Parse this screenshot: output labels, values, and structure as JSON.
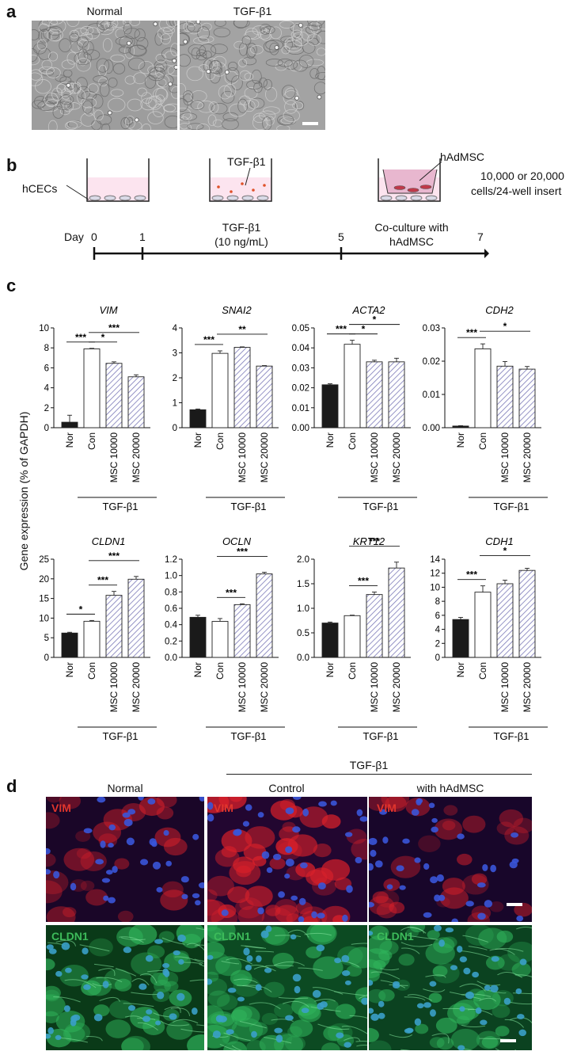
{
  "panel_a": {
    "label": "a",
    "captions": [
      "Normal",
      "TGF-β1"
    ]
  },
  "panel_b": {
    "label": "b",
    "hcecs": "hCECs",
    "tgf_top": "TGF-β1",
    "hadmsc_top": "hAdMSC",
    "cells_line1": "10,000 or 20,000",
    "cells_line2": "cells/24-well insert",
    "day_label": "Day",
    "ticks": [
      "0",
      "1",
      "5",
      "7"
    ],
    "tgf_phase_line1": "TGF-β1",
    "tgf_phase_line2": "(10 ng/mL)",
    "cocult_line1": "Co-culture with",
    "cocult_line2": "hAdMSC"
  },
  "panel_c": {
    "label": "c",
    "ylabel": "Gene expression (% of GAPDH)",
    "group_label": "TGF-β1"
  },
  "chart_data": [
    {
      "type": "bar",
      "title": "VIM",
      "categories": [
        "Nor",
        "Con",
        "MSC 10000",
        "MSC 20000"
      ],
      "values": [
        0.55,
        7.9,
        6.45,
        5.1
      ],
      "errors": [
        0.7,
        0.05,
        0.15,
        0.2
      ],
      "ylim": [
        0,
        10
      ],
      "yticks": [
        "0",
        "2",
        "4",
        "6",
        "8",
        "10"
      ],
      "sig": [
        {
          "from": 1,
          "to": 2,
          "label": "*"
        },
        {
          "from": 1,
          "to": 3,
          "label": "***"
        },
        {
          "from": 0,
          "to": 1,
          "label": "***"
        }
      ]
    },
    {
      "type": "bar",
      "title": "SNAI2",
      "categories": [
        "Nor",
        "Con",
        "MSC 10000",
        "MSC 20000"
      ],
      "values": [
        0.72,
        2.98,
        3.22,
        2.47
      ],
      "errors": [
        0.03,
        0.1,
        0.02,
        0.02
      ],
      "ylim": [
        0,
        4
      ],
      "yticks": [
        "0",
        "1",
        "2",
        "3",
        "4"
      ],
      "sig": [
        {
          "from": 0,
          "to": 1,
          "label": "***"
        },
        {
          "from": 1,
          "to": 3,
          "label": "**"
        }
      ]
    },
    {
      "type": "bar",
      "title": "ACTA2",
      "categories": [
        "Nor",
        "Con",
        "MSC 10000",
        "MSC 20000"
      ],
      "values": [
        0.0215,
        0.0418,
        0.033,
        0.033
      ],
      "errors": [
        0.0005,
        0.002,
        0.0008,
        0.0018
      ],
      "ylim": [
        0,
        0.05
      ],
      "yticks": [
        "0.00",
        "0.01",
        "0.02",
        "0.03",
        "0.04",
        "0.05"
      ],
      "sig": [
        {
          "from": 0,
          "to": 1,
          "label": "***"
        },
        {
          "from": 1,
          "to": 2,
          "label": "*"
        },
        {
          "from": 1,
          "to": 3,
          "label": "*"
        }
      ]
    },
    {
      "type": "bar",
      "title": "CDH2",
      "categories": [
        "Nor",
        "Con",
        "MSC 10000",
        "MSC 20000"
      ],
      "values": [
        0.0005,
        0.0237,
        0.0185,
        0.0176
      ],
      "errors": [
        0.0001,
        0.0015,
        0.0014,
        0.0008
      ],
      "ylim": [
        0,
        0.03
      ],
      "yticks": [
        "0.00",
        "0.01",
        "0.02",
        "0.03"
      ],
      "sig": [
        {
          "from": 0,
          "to": 1,
          "label": "***"
        },
        {
          "from": 1,
          "to": 3,
          "label": "*"
        }
      ]
    },
    {
      "type": "bar",
      "title": "CLDN1",
      "categories": [
        "Nor",
        "Con",
        "MSC 10000",
        "MSC 20000"
      ],
      "values": [
        6.2,
        9.2,
        15.8,
        19.9
      ],
      "errors": [
        0.2,
        0.2,
        1.0,
        0.7
      ],
      "ylim": [
        0,
        25
      ],
      "yticks": [
        "0",
        "5",
        "10",
        "15",
        "20",
        "25"
      ],
      "sig": [
        {
          "from": 0,
          "to": 1,
          "label": "*"
        },
        {
          "from": 1,
          "to": 2,
          "label": "***"
        },
        {
          "from": 1,
          "to": 3,
          "label": "***"
        }
      ]
    },
    {
      "type": "bar",
      "title": "OCLN",
      "categories": [
        "Nor",
        "Con",
        "MSC 10000",
        "MSC 20000"
      ],
      "values": [
        0.49,
        0.44,
        0.645,
        1.02
      ],
      "errors": [
        0.025,
        0.035,
        0.01,
        0.02
      ],
      "ylim": [
        0,
        1.2
      ],
      "yticks": [
        "0.0",
        "0.2",
        "0.4",
        "0.6",
        "0.8",
        "1.0",
        "1.2"
      ],
      "sig": [
        {
          "from": 1,
          "to": 2,
          "label": "***"
        },
        {
          "from": 1,
          "to": 3,
          "label": "***"
        }
      ]
    },
    {
      "type": "bar",
      "title": "KRT12",
      "categories": [
        "Nor",
        "Con",
        "MSC 10000",
        "MSC 20000"
      ],
      "values": [
        0.7,
        0.85,
        1.28,
        1.82
      ],
      "errors": [
        0.02,
        0.01,
        0.05,
        0.12
      ],
      "ylim": [
        0,
        2.0
      ],
      "yticks": [
        "0.0",
        "0.5",
        "1.0",
        "1.5",
        "2.0"
      ],
      "sig": [
        {
          "from": 1,
          "to": 2,
          "label": "***"
        },
        {
          "from": 1,
          "to": 3,
          "label": "***"
        }
      ]
    },
    {
      "type": "bar",
      "title": "CDH1",
      "categories": [
        "Nor",
        "Con",
        "MSC 10000",
        "MSC 20000"
      ],
      "values": [
        5.4,
        9.3,
        10.5,
        12.4
      ],
      "errors": [
        0.3,
        0.9,
        0.5,
        0.3
      ],
      "ylim": [
        0,
        14
      ],
      "yticks": [
        "0",
        "2",
        "4",
        "6",
        "8",
        "10",
        "12",
        "14"
      ],
      "sig": [
        {
          "from": 0,
          "to": 1,
          "label": "***"
        },
        {
          "from": 1,
          "to": 3,
          "label": "*"
        }
      ]
    }
  ],
  "panel_d": {
    "label": "d",
    "group_label": "TGF-β1",
    "columns": [
      "Normal",
      "Control",
      "with hAdMSC"
    ],
    "rows": [
      "VIM",
      "CLDN1"
    ]
  },
  "colors": {
    "nor_bar": "#1a1a1a",
    "con_bar": "#ffffff",
    "msc_hatch": "#7b79b8",
    "vim_red": "#d8202a",
    "cldn_green": "#2fb25a",
    "nuclei_blue": "#3a55d8"
  }
}
